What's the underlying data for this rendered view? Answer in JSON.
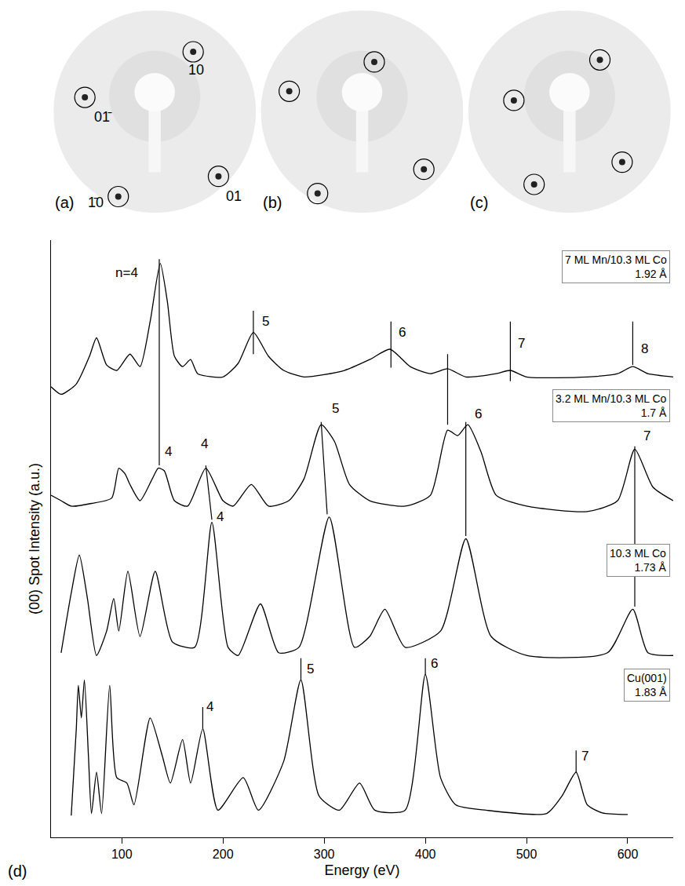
{
  "chart_data": [
    {
      "type": "scatter",
      "panel": "(a)",
      "xlim": [
        -1,
        1
      ],
      "ylim": [
        -1,
        1
      ],
      "tick_labels": false,
      "marker": "circle",
      "x": [
        0.38,
        -0.69,
        0.63,
        -0.36
      ],
      "y": [
        0.59,
        0.14,
        -0.64,
        -0.84
      ],
      "point_labels": [
        "10",
        "01̄",
        "01",
        "1̄0"
      ],
      "label_x": [
        0.41,
        -0.51,
        0.78,
        -0.58
      ],
      "label_y": [
        0.41,
        -0.05,
        -0.84,
        -0.9
      ]
    },
    {
      "type": "scatter",
      "panel": "(b)",
      "xlim": [
        -1,
        1
      ],
      "ylim": [
        -1,
        1
      ],
      "tick_labels": false,
      "marker": "circle",
      "x": [
        0.12,
        -0.72,
        0.61,
        -0.44
      ],
      "y": [
        0.49,
        0.2,
        -0.57,
        -0.81
      ]
    },
    {
      "type": "scatter",
      "panel": "(c)",
      "xlim": [
        -1,
        1
      ],
      "ylim": [
        -1,
        1
      ],
      "tick_labels": false,
      "marker": "circle",
      "x": [
        0.3,
        -0.55,
        0.52,
        -0.35
      ],
      "y": [
        0.51,
        0.11,
        -0.5,
        -0.72
      ]
    },
    {
      "type": "line",
      "panel": "(d)",
      "xlabel": "Energy (eV)",
      "ylabel": "(00) Spot Intensity (a.u.)",
      "xlim": [
        30,
        645
      ],
      "xticks": [
        100,
        200,
        300,
        400,
        500,
        600
      ],
      "ylim": [
        0,
        110
      ],
      "tick_labels": "x",
      "color": "#000000",
      "series": [
        {
          "name": "7 ML Mn/10.3 ML Co",
          "spacing": "1.92 Å",
          "x": [
            30,
            40,
            55,
            68,
            75,
            85,
            95,
            108,
            118,
            128,
            138,
            145,
            152,
            160,
            168,
            175,
            200,
            215,
            230,
            245,
            260,
            280,
            320,
            345,
            365,
            385,
            405,
            422,
            440,
            470,
            484,
            500,
            560,
            590,
            605,
            620,
            645
          ],
          "values": [
            83,
            81.6,
            83.5,
            88.6,
            92,
            87,
            86,
            89,
            86.7,
            95,
            105.7,
            98.7,
            88.6,
            86.7,
            88,
            85.4,
            84.8,
            87.3,
            93,
            88.6,
            86,
            84.8,
            86,
            88,
            89.9,
            86.7,
            85.4,
            86.3,
            84.8,
            85.4,
            86,
            84.8,
            84.8,
            85.4,
            86.7,
            85.4,
            84.8
          ]
        },
        {
          "name": "3.2 ML Mn/10.3 ML Co",
          "spacing": "1.7 Å",
          "x": [
            30,
            40,
            50,
            70,
            90,
            97,
            103,
            108,
            118,
            130,
            136,
            142,
            152,
            165,
            183,
            200,
            210,
            228,
            245,
            265,
            280,
            297,
            310,
            325,
            345,
            380,
            405,
            422,
            432,
            442,
            455,
            470,
            500,
            560,
            590,
            607,
            625,
            645
          ],
          "values": [
            63,
            62,
            61,
            61.5,
            62.5,
            68,
            67,
            65,
            62,
            66,
            68,
            67.5,
            62,
            61,
            68,
            62,
            61,
            65,
            61,
            62,
            66,
            76,
            73,
            65,
            62,
            61,
            63,
            75,
            74,
            76,
            71,
            63,
            61,
            60,
            62,
            71.5,
            64.5,
            62
          ]
        },
        {
          "name": "10.3 ML Co",
          "spacing": "1.73 Å",
          "x": [
            40,
            50,
            58,
            66,
            75,
            85,
            92,
            97,
            106,
            118,
            133,
            150,
            172,
            189,
            205,
            215,
            237,
            255,
            275,
            305,
            330,
            345,
            360,
            380,
            415,
            440,
            465,
            500,
            580,
            605,
            620,
            645
          ],
          "values": [
            34,
            45,
            52,
            44,
            33.5,
            38,
            44,
            38,
            49,
            37,
            49,
            36,
            35,
            58,
            35,
            33.5,
            43,
            34,
            35,
            59,
            35,
            37,
            42,
            35,
            38,
            55,
            37,
            33.5,
            34,
            42,
            34,
            33.5
          ]
        },
        {
          "name": "Cu(001)",
          "spacing": "1.83 Å",
          "x": [
            50,
            55,
            57,
            60,
            63,
            67,
            70,
            75,
            80,
            88,
            95,
            105,
            112,
            128,
            140,
            148,
            160,
            168,
            180,
            195,
            220,
            235,
            260,
            277,
            295,
            315,
            335,
            350,
            380,
            400,
            415,
            430,
            460,
            520,
            535,
            549,
            560,
            575,
            600
          ],
          "values": [
            4,
            20,
            28,
            22,
            29,
            15,
            4.4,
            12,
            4.4,
            28,
            11,
            10,
            6,
            22,
            15,
            10,
            18,
            10,
            20,
            5,
            11,
            5,
            14,
            29,
            7.6,
            5,
            10,
            5,
            5,
            30,
            11,
            6,
            5,
            4.4,
            7.6,
            12,
            6,
            4.5,
            4.2
          ]
        }
      ],
      "peak_lines": [
        {
          "x": [
            137,
            137
          ],
          "y": [
            68.5,
            106.5
          ]
        },
        {
          "x": [
            230,
            230
          ],
          "y": [
            89,
            97
          ]
        },
        {
          "x": [
            366,
            366
          ],
          "y": [
            86.5,
            95
          ]
        },
        {
          "x": [
            422,
            422
          ],
          "y": [
            76,
            89
          ]
        },
        {
          "x": [
            484,
            484
          ],
          "y": [
            84,
            95
          ]
        },
        {
          "x": [
            605,
            605
          ],
          "y": [
            87,
            95
          ]
        },
        {
          "x": [
            183,
            189
          ],
          "y": [
            68.5,
            58.5
          ]
        },
        {
          "x": [
            297,
            303
          ],
          "y": [
            76.5,
            59.5
          ]
        },
        {
          "x": [
            440,
            440
          ],
          "y": [
            76.5,
            55.5
          ]
        },
        {
          "x": [
            607,
            607
          ],
          "y": [
            72,
            42.5
          ]
        },
        {
          "x": [
            180,
            180
          ],
          "y": [
            20,
            24
          ]
        },
        {
          "x": [
            277,
            277
          ],
          "y": [
            29,
            33
          ]
        },
        {
          "x": [
            400,
            400
          ],
          "y": [
            30,
            33
          ]
        },
        {
          "x": [
            549,
            549
          ],
          "y": [
            12,
            16
          ]
        }
      ],
      "annotations": [
        {
          "text": "n=4",
          "x": 105,
          "y": 104
        },
        {
          "text": "5",
          "x": 242,
          "y": 95
        },
        {
          "text": "6",
          "x": 377,
          "y": 93
        },
        {
          "text": "7",
          "x": 495,
          "y": 91
        },
        {
          "text": "8",
          "x": 617,
          "y": 90
        },
        {
          "text": "4",
          "x": 146,
          "y": 71
        },
        {
          "text": "4",
          "x": 182,
          "y": 72.5
        },
        {
          "text": "5",
          "x": 311,
          "y": 79
        },
        {
          "text": "6",
          "x": 452,
          "y": 78
        },
        {
          "text": "7",
          "x": 619,
          "y": 74
        },
        {
          "text": "4",
          "x": 197,
          "y": 59
        },
        {
          "text": "4",
          "x": 187,
          "y": 24
        },
        {
          "text": "5",
          "x": 286,
          "y": 31
        },
        {
          "text": "6",
          "x": 409,
          "y": 32
        },
        {
          "text": "7",
          "x": 558,
          "y": 15
        }
      ]
    }
  ]
}
